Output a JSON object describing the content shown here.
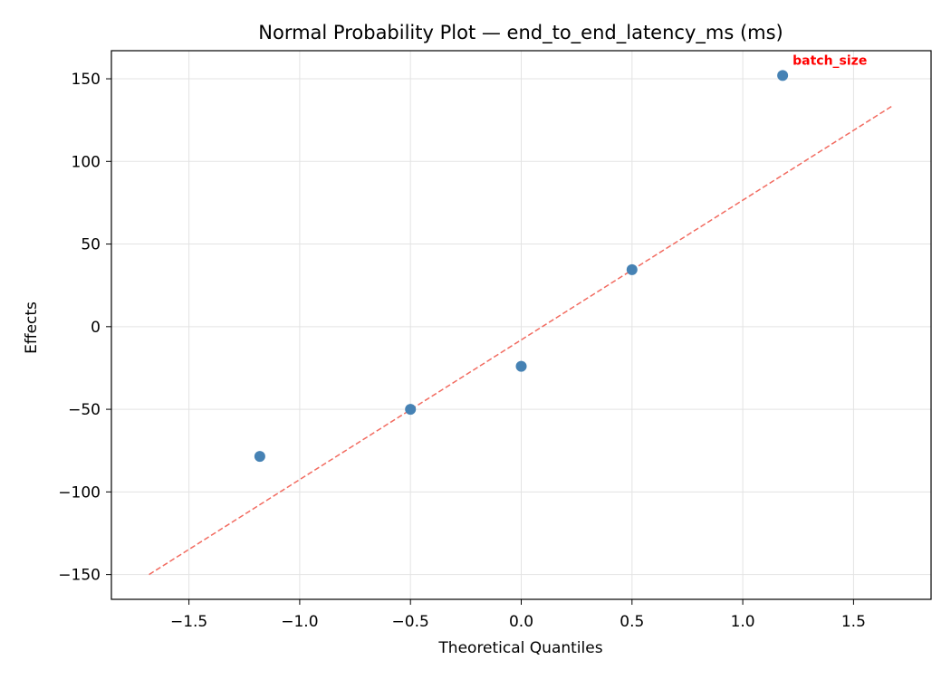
{
  "chart_data": {
    "type": "scatter",
    "title": "Normal Probability Plot — end_to_end_latency_ms (ms)",
    "xlabel": "Theoretical Quantiles",
    "ylabel": "Effects",
    "xlim": [
      -1.85,
      1.85
    ],
    "ylim": [
      -165,
      167
    ],
    "xticks": [
      -1.5,
      -1.0,
      -0.5,
      0.0,
      0.5,
      1.0,
      1.5
    ],
    "xtick_labels": [
      "−1.5",
      "−1.0",
      "−0.5",
      "0.0",
      "0.5",
      "1.0",
      "1.5"
    ],
    "yticks": [
      150,
      100,
      50,
      0,
      -50,
      -100,
      -150
    ],
    "ytick_labels": [
      "150",
      "100",
      "50",
      "0",
      "−50",
      "−100",
      "−150"
    ],
    "grid": true,
    "points": [
      {
        "x": -1.18,
        "y": -78.5
      },
      {
        "x": -0.5,
        "y": -50
      },
      {
        "x": 0.0,
        "y": -24
      },
      {
        "x": 0.5,
        "y": 34.5
      },
      {
        "x": 1.18,
        "y": 152
      }
    ],
    "reference_line": {
      "x": [
        -1.68,
        1.68
      ],
      "y": [
        -150,
        134
      ],
      "style": "dashed"
    },
    "annotations": [
      {
        "text": "batch_size",
        "x": 1.18,
        "y": 152
      }
    ],
    "colors": {
      "points": "#4682b4",
      "reference_line": "#f26b60",
      "annotation": "#ff0000",
      "grid": "#e3e3e3"
    }
  }
}
